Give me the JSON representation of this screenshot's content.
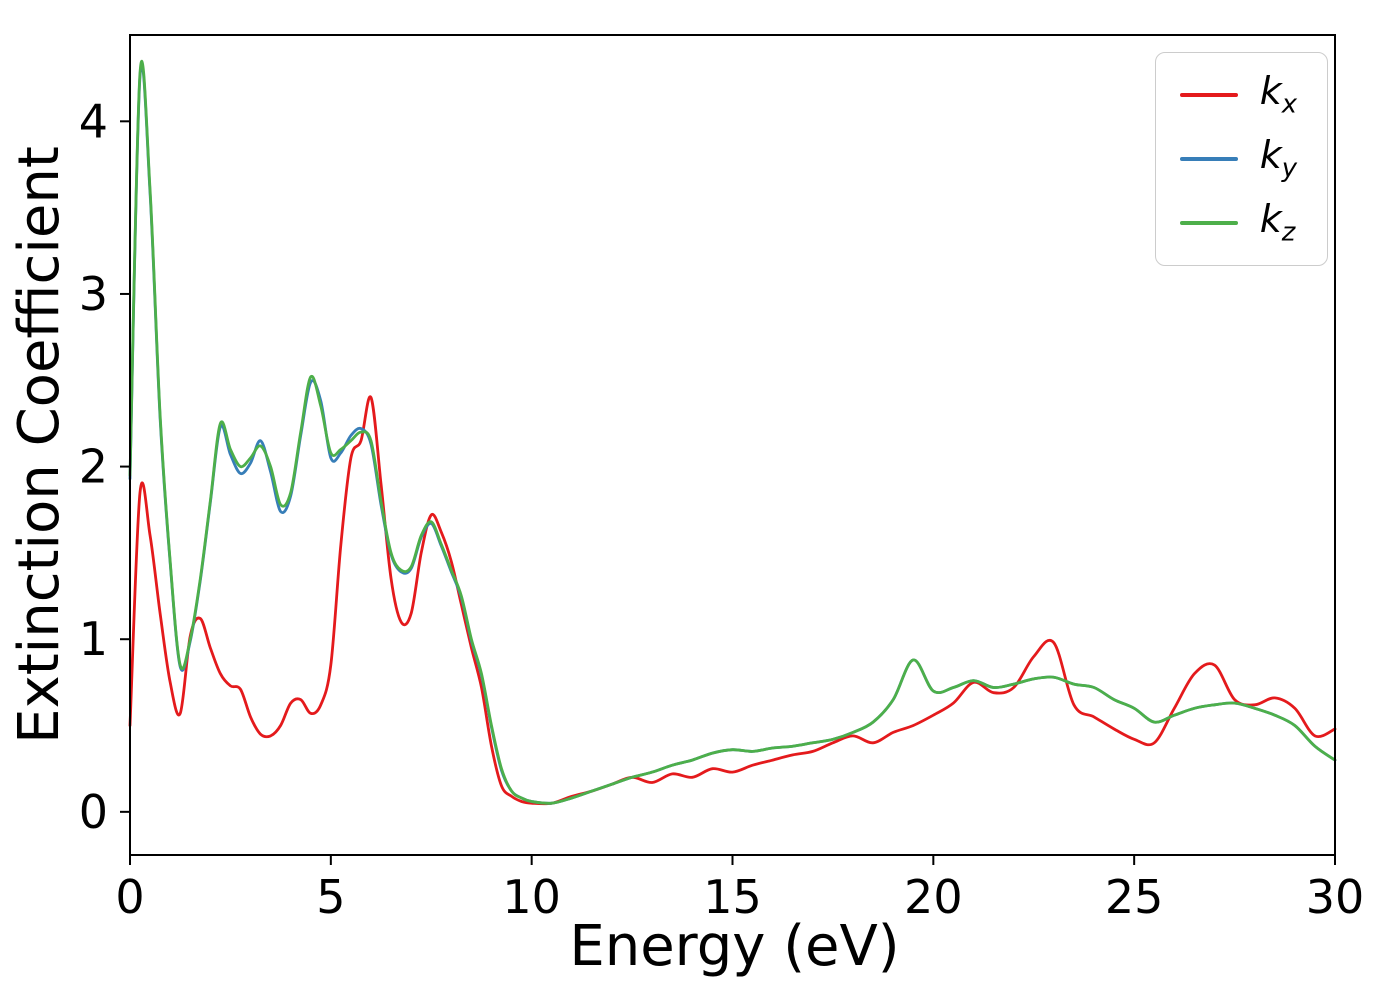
{
  "colors": {
    "background": "#ffffff",
    "frame": "#000000",
    "legend_border": "#cccccc"
  },
  "chart_data": {
    "type": "line",
    "title": "",
    "xlabel": "Energy (eV)",
    "ylabel": "Extinction Coefficient",
    "xlim": [
      0,
      30
    ],
    "ylim": [
      -0.25,
      4.5
    ],
    "xticks": [
      0,
      5,
      10,
      15,
      20,
      25,
      30
    ],
    "yticks": [
      0,
      1,
      2,
      3,
      4
    ],
    "grid": false,
    "legend_position": "upper right",
    "x": [
      0,
      0.25,
      0.5,
      0.75,
      1,
      1.25,
      1.5,
      1.75,
      2,
      2.25,
      2.5,
      2.75,
      3,
      3.25,
      3.5,
      3.75,
      4,
      4.25,
      4.5,
      4.75,
      5,
      5.25,
      5.5,
      5.75,
      6,
      6.25,
      6.5,
      6.75,
      7,
      7.25,
      7.5,
      7.75,
      8,
      8.25,
      8.5,
      8.75,
      9,
      9.25,
      9.5,
      9.75,
      10,
      10.5,
      11,
      11.5,
      12,
      12.5,
      13,
      13.5,
      14,
      14.5,
      15,
      15.5,
      16,
      16.5,
      17,
      17.5,
      18,
      18.5,
      19,
      19.5,
      20,
      20.5,
      21,
      21.5,
      22,
      22.5,
      23,
      23.5,
      24,
      24.5,
      25,
      25.5,
      26,
      26.5,
      27,
      27.5,
      28,
      28.5,
      29,
      29.5,
      30
    ],
    "series": [
      {
        "id": "kx",
        "name": "k_x",
        "label_base": "k",
        "label_sub": "x",
        "color": "#e41a1c",
        "values": [
          0.5,
          1.85,
          1.6,
          1.15,
          0.75,
          0.57,
          1.02,
          1.12,
          0.95,
          0.8,
          0.73,
          0.71,
          0.55,
          0.45,
          0.44,
          0.5,
          0.63,
          0.65,
          0.57,
          0.62,
          0.85,
          1.55,
          2.05,
          2.15,
          2.4,
          1.9,
          1.35,
          1.1,
          1.15,
          1.5,
          1.72,
          1.62,
          1.45,
          1.2,
          0.95,
          0.72,
          0.38,
          0.15,
          0.09,
          0.06,
          0.05,
          0.05,
          0.09,
          0.12,
          0.16,
          0.2,
          0.17,
          0.22,
          0.2,
          0.25,
          0.23,
          0.27,
          0.3,
          0.33,
          0.35,
          0.4,
          0.44,
          0.4,
          0.46,
          0.5,
          0.56,
          0.63,
          0.75,
          0.69,
          0.72,
          0.9,
          0.98,
          0.62,
          0.55,
          0.48,
          0.42,
          0.4,
          0.6,
          0.8,
          0.85,
          0.65,
          0.62,
          0.66,
          0.6,
          0.44,
          0.48
        ]
      },
      {
        "id": "ky",
        "name": "k_y",
        "label_base": "k",
        "label_sub": "y",
        "color": "#377eb8",
        "values": [
          1.93,
          4.26,
          3.58,
          2.28,
          1.44,
          0.84,
          0.99,
          1.34,
          1.79,
          2.23,
          2.07,
          1.96,
          2.02,
          2.15,
          1.97,
          1.74,
          1.83,
          2.18,
          2.49,
          2.38,
          2.05,
          2.08,
          2.18,
          2.22,
          2.13,
          1.78,
          1.49,
          1.39,
          1.41,
          1.59,
          1.67,
          1.54,
          1.39,
          1.24,
          0.99,
          0.79,
          0.49,
          0.24,
          0.12,
          0.08,
          0.06,
          0.05,
          0.08,
          0.12,
          0.16,
          0.2,
          0.23,
          0.27,
          0.3,
          0.34,
          0.36,
          0.35,
          0.37,
          0.38,
          0.4,
          0.42,
          0.46,
          0.52,
          0.65,
          0.88,
          0.7,
          0.72,
          0.76,
          0.72,
          0.74,
          0.77,
          0.78,
          0.74,
          0.72,
          0.65,
          0.6,
          0.52,
          0.56,
          0.6,
          0.62,
          0.63,
          0.6,
          0.56,
          0.5,
          0.38,
          0.3
        ]
      },
      {
        "id": "kz",
        "name": "k_z",
        "label_base": "k",
        "label_sub": "z",
        "color": "#4daf4a",
        "values": [
          1.95,
          4.28,
          3.6,
          2.3,
          1.45,
          0.85,
          1.0,
          1.35,
          1.8,
          2.25,
          2.1,
          2.0,
          2.05,
          2.12,
          2.0,
          1.78,
          1.85,
          2.2,
          2.52,
          2.35,
          2.08,
          2.1,
          2.15,
          2.2,
          2.15,
          1.8,
          1.5,
          1.4,
          1.42,
          1.6,
          1.68,
          1.55,
          1.4,
          1.25,
          1.0,
          0.8,
          0.5,
          0.25,
          0.12,
          0.08,
          0.06,
          0.05,
          0.08,
          0.12,
          0.16,
          0.2,
          0.23,
          0.27,
          0.3,
          0.34,
          0.36,
          0.35,
          0.37,
          0.38,
          0.4,
          0.42,
          0.46,
          0.52,
          0.65,
          0.88,
          0.7,
          0.72,
          0.76,
          0.72,
          0.74,
          0.77,
          0.78,
          0.74,
          0.72,
          0.65,
          0.6,
          0.52,
          0.56,
          0.6,
          0.62,
          0.63,
          0.6,
          0.56,
          0.5,
          0.38,
          0.3
        ]
      }
    ]
  }
}
